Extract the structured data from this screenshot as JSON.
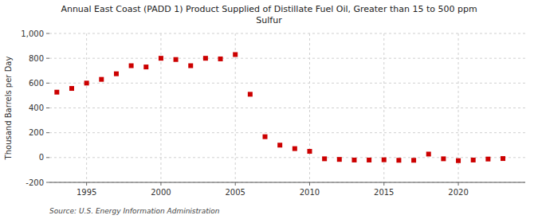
{
  "chart_data": {
    "type": "scatter",
    "title": "Annual East Coast (PADD 1) Product Supplied of Distillate Fuel Oil, Greater than 15 to 500 ppm\nSulfur",
    "y_label": "Thousand Barrels per Day",
    "source": "Source: U.S. Energy Information Administration",
    "color": "#cc0000",
    "marker": "square",
    "grid": true,
    "ylim": [
      -200,
      1000
    ],
    "yticks": [
      -200,
      0,
      200,
      400,
      600,
      800,
      {
        "value": 1000,
        "label": "1,000"
      }
    ],
    "xlim": [
      1992.5,
      2024.5
    ],
    "xticks": [
      1995,
      2000,
      2005,
      2010,
      2015,
      2020
    ],
    "x": [
      1993,
      1994,
      1995,
      1996,
      1997,
      1998,
      1999,
      2000,
      2001,
      2002,
      2003,
      2004,
      2005,
      2006,
      2007,
      2008,
      2009,
      2010,
      2011,
      2012,
      2013,
      2014,
      2015,
      2016,
      2017,
      2018,
      2019,
      2020,
      2021,
      2022,
      2023
    ],
    "values": [
      527,
      557,
      600,
      630,
      675,
      740,
      730,
      800,
      790,
      740,
      800,
      795,
      830,
      510,
      168,
      100,
      72,
      50,
      -10,
      -15,
      -20,
      -20,
      -18,
      -22,
      -22,
      28,
      -10,
      -25,
      -20,
      -12,
      -8
    ]
  }
}
